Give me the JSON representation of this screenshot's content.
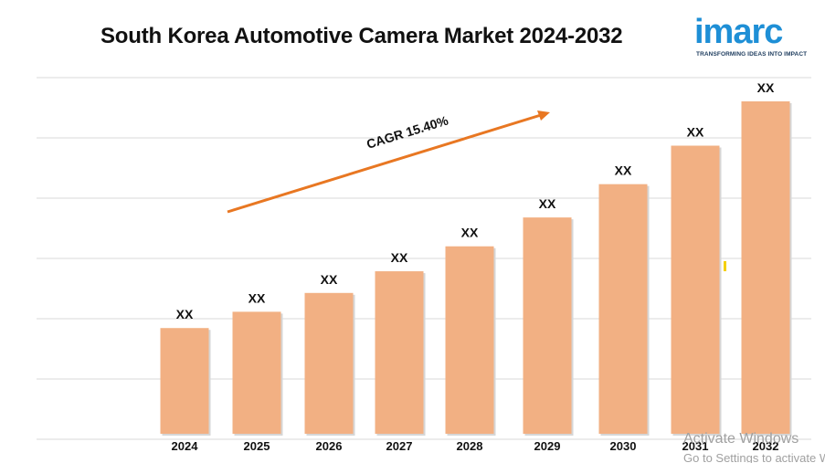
{
  "chart_data": {
    "type": "bar",
    "title": "South Korea Automotive Camera Market 2024-2032",
    "categories": [
      "2024",
      "2025",
      "2026",
      "2027",
      "2028",
      "2029",
      "2030",
      "2031",
      "2032"
    ],
    "values": [
      100,
      115.4,
      133.2,
      153.7,
      177.3,
      204.6,
      236.1,
      272.5,
      314.4
    ],
    "data_labels": [
      "XX",
      "XX",
      "XX",
      "XX",
      "XX",
      "XX",
      "XX",
      "XX",
      "XX"
    ],
    "annotation": "CAGR 15.40%",
    "bar_color": "#f2b083",
    "arrow_color": "#e87722",
    "grid": true,
    "legend": false,
    "xlabel": "",
    "ylabel": ""
  },
  "logo": {
    "name": "imarc",
    "tagline": "TRANSFORMING IDEAS INTO IMPACT",
    "color": "#1e8fd6"
  },
  "watermark": {
    "line1": "Activate Windows",
    "line2": "Go to Settings to activate Windows."
  }
}
